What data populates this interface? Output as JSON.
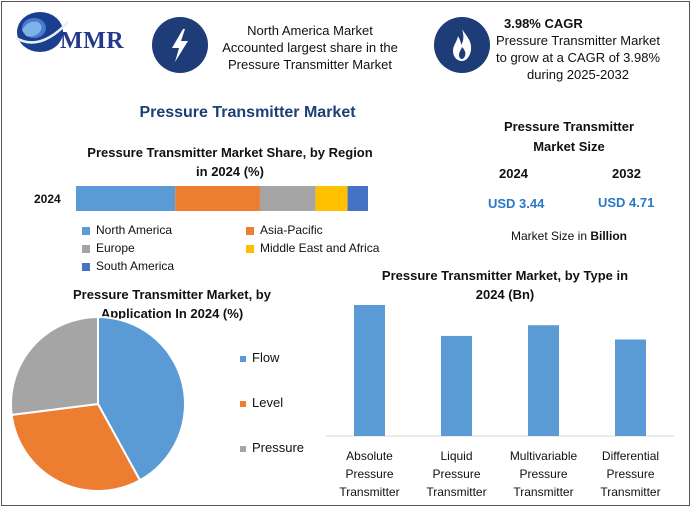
{
  "logo": {
    "text": "MMR"
  },
  "highlights": {
    "left": {
      "icon": "lightning-icon",
      "line1": "North America Market",
      "line2": "Accounted largest share in the",
      "line3": "Pressure Transmitter Market"
    },
    "right": {
      "icon": "flame-icon",
      "line1": "3.98% CAGR",
      "line2": "Pressure Transmitter Market",
      "line3": "to grow at a CAGR of 3.98%",
      "line4": "during 2025-2032"
    }
  },
  "main_title": "Pressure Transmitter Market",
  "market_size": {
    "title_line1": "Pressure Transmitter",
    "title_line2": "Market Size",
    "year1": "2024",
    "year2": "2032",
    "value1": "USD 3.44",
    "value2": "USD 4.71",
    "footnote_prefix": "Market Size in ",
    "footnote_unit": "Billion"
  },
  "colors": {
    "blue": "#5b9bd5",
    "orange": "#ed7d31",
    "gray": "#a5a5a5",
    "yellow": "#ffc000",
    "darkblue": "#4472c4",
    "navy": "#1e3c78",
    "value_blue": "#2a78c8"
  },
  "chart_data": [
    {
      "type": "bar",
      "orientation": "horizontal-stacked",
      "title_line1": "Pressure Transmitter Market Share, by Region",
      "title_line2": "in 2024 (%)",
      "categories": [
        "2024"
      ],
      "series": [
        {
          "name": "North America",
          "values": [
            34
          ]
        },
        {
          "name": "Asia-Pacific",
          "values": [
            29
          ]
        },
        {
          "name": "Europe",
          "values": [
            19
          ]
        },
        {
          "name": "Middle East and Africa",
          "values": [
            11
          ]
        },
        {
          "name": "South America",
          "values": [
            7
          ]
        }
      ],
      "legend": "bottom"
    },
    {
      "type": "pie",
      "title_line1": "Pressure Transmitter Market, by",
      "title_line2": "Application In 2024 (%)",
      "labels": [
        "Flow",
        "Level",
        "Pressure"
      ],
      "values": [
        42,
        31,
        27
      ],
      "legend": "right"
    },
    {
      "type": "bar",
      "title_line1": "Pressure Transmitter Market, by Type in",
      "title_line2": "2024 (Bn)",
      "categories": [
        [
          "Absolute",
          "Pressure",
          "Transmitter"
        ],
        [
          "Liquid",
          "Pressure",
          "Transmitter"
        ],
        [
          "Multivariable",
          "Pressure",
          "Transmitter"
        ],
        [
          "Differential",
          "Pressure",
          "Transmitter"
        ]
      ],
      "values": [
        1.1,
        0.84,
        0.93,
        0.81
      ],
      "ylim": [
        0,
        1.15
      ]
    }
  ]
}
